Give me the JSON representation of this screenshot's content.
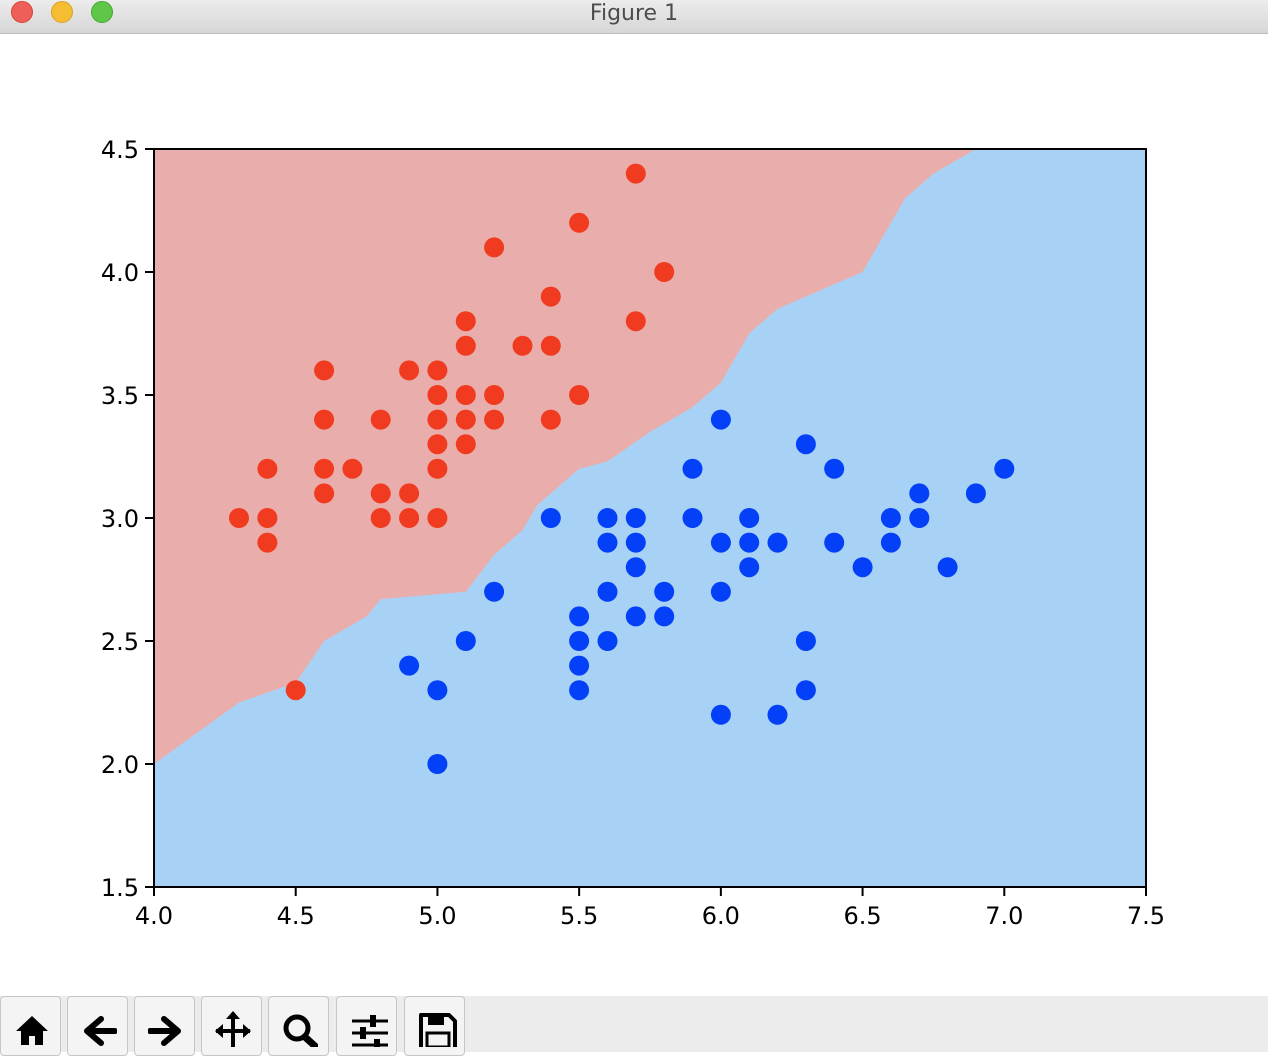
{
  "window": {
    "title": "Figure 1"
  },
  "toolbar": {
    "buttons": [
      {
        "icon": "home-icon"
      },
      {
        "icon": "back-arrow-icon"
      },
      {
        "icon": "forward-arrow-icon"
      },
      {
        "icon": "pan-move-icon"
      },
      {
        "icon": "zoom-magnifier-icon"
      },
      {
        "icon": "subplots-sliders-icon"
      },
      {
        "icon": "save-floppy-icon"
      }
    ]
  },
  "chart_data": {
    "type": "scatter",
    "title": "",
    "xlabel": "",
    "ylabel": "",
    "xlim": [
      4.0,
      7.5
    ],
    "ylim": [
      1.5,
      4.5
    ],
    "xticks": [
      "4.0",
      "4.5",
      "5.0",
      "5.5",
      "6.0",
      "6.5",
      "7.0",
      "7.5"
    ],
    "yticks": [
      "1.5",
      "2.0",
      "2.5",
      "3.0",
      "3.5",
      "4.0",
      "4.5"
    ],
    "grid": false,
    "legend": false,
    "colors": {
      "region_class_0": "#e9aeac",
      "region_class_1": "#a8d2f5",
      "points_class_0": "#f03b20",
      "points_class_1": "#0340f7"
    },
    "decision_boundary": [
      [
        4.0,
        2.0
      ],
      [
        4.3,
        2.25
      ],
      [
        4.5,
        2.33
      ],
      [
        4.6,
        2.5
      ],
      [
        4.75,
        2.6
      ],
      [
        4.8,
        2.67
      ],
      [
        5.1,
        2.7
      ],
      [
        5.2,
        2.85
      ],
      [
        5.3,
        2.95
      ],
      [
        5.35,
        3.05
      ],
      [
        5.5,
        3.2
      ],
      [
        5.6,
        3.23
      ],
      [
        5.75,
        3.35
      ],
      [
        5.9,
        3.45
      ],
      [
        6.0,
        3.55
      ],
      [
        6.1,
        3.75
      ],
      [
        6.2,
        3.85
      ],
      [
        6.4,
        3.95
      ],
      [
        6.5,
        4.0
      ],
      [
        6.65,
        4.3
      ],
      [
        6.75,
        4.4
      ],
      [
        6.9,
        4.5
      ]
    ],
    "series": [
      {
        "points": [
          [
            5.7,
            4.4
          ],
          [
            5.5,
            4.2
          ],
          [
            5.2,
            4.1
          ],
          [
            5.8,
            4.0
          ],
          [
            5.4,
            3.9
          ],
          [
            5.1,
            3.8
          ],
          [
            5.7,
            3.8
          ],
          [
            5.1,
            3.7
          ],
          [
            5.3,
            3.7
          ],
          [
            5.4,
            3.7
          ],
          [
            4.6,
            3.6
          ],
          [
            4.9,
            3.6
          ],
          [
            5.0,
            3.6
          ],
          [
            5.0,
            3.5
          ],
          [
            5.1,
            3.5
          ],
          [
            5.2,
            3.5
          ],
          [
            5.5,
            3.5
          ],
          [
            4.6,
            3.4
          ],
          [
            4.8,
            3.4
          ],
          [
            5.0,
            3.4
          ],
          [
            5.1,
            3.4
          ],
          [
            5.2,
            3.4
          ],
          [
            5.4,
            3.4
          ],
          [
            5.0,
            3.3
          ],
          [
            5.1,
            3.3
          ],
          [
            4.4,
            3.2
          ],
          [
            4.6,
            3.2
          ],
          [
            4.7,
            3.2
          ],
          [
            5.0,
            3.2
          ],
          [
            4.6,
            3.1
          ],
          [
            4.8,
            3.1
          ],
          [
            4.9,
            3.1
          ],
          [
            4.3,
            3.0
          ],
          [
            4.4,
            3.0
          ],
          [
            4.8,
            3.0
          ],
          [
            4.9,
            3.0
          ],
          [
            5.0,
            3.0
          ],
          [
            4.4,
            2.9
          ],
          [
            4.5,
            2.3
          ]
        ]
      },
      {
        "points": [
          [
            6.0,
            3.4
          ],
          [
            6.3,
            3.3
          ],
          [
            5.9,
            3.2
          ],
          [
            6.4,
            3.2
          ],
          [
            7.0,
            3.2
          ],
          [
            6.7,
            3.1
          ],
          [
            6.9,
            3.1
          ],
          [
            5.4,
            3.0
          ],
          [
            5.6,
            3.0
          ],
          [
            5.7,
            3.0
          ],
          [
            5.9,
            3.0
          ],
          [
            6.1,
            3.0
          ],
          [
            6.6,
            3.0
          ],
          [
            6.7,
            3.0
          ],
          [
            5.6,
            2.9
          ],
          [
            5.7,
            2.9
          ],
          [
            6.0,
            2.9
          ],
          [
            6.1,
            2.9
          ],
          [
            6.2,
            2.9
          ],
          [
            6.4,
            2.9
          ],
          [
            6.6,
            2.9
          ],
          [
            5.7,
            2.8
          ],
          [
            6.1,
            2.8
          ],
          [
            6.5,
            2.8
          ],
          [
            6.8,
            2.8
          ],
          [
            5.2,
            2.7
          ],
          [
            5.6,
            2.7
          ],
          [
            5.8,
            2.7
          ],
          [
            6.0,
            2.7
          ],
          [
            5.5,
            2.6
          ],
          [
            5.7,
            2.6
          ],
          [
            5.8,
            2.6
          ],
          [
            5.1,
            2.5
          ],
          [
            5.5,
            2.5
          ],
          [
            5.6,
            2.5
          ],
          [
            6.3,
            2.5
          ],
          [
            4.9,
            2.4
          ],
          [
            5.5,
            2.4
          ],
          [
            5.0,
            2.3
          ],
          [
            5.5,
            2.3
          ],
          [
            6.3,
            2.3
          ],
          [
            6.0,
            2.2
          ],
          [
            6.2,
            2.2
          ],
          [
            5.0,
            2.0
          ]
        ]
      }
    ]
  }
}
